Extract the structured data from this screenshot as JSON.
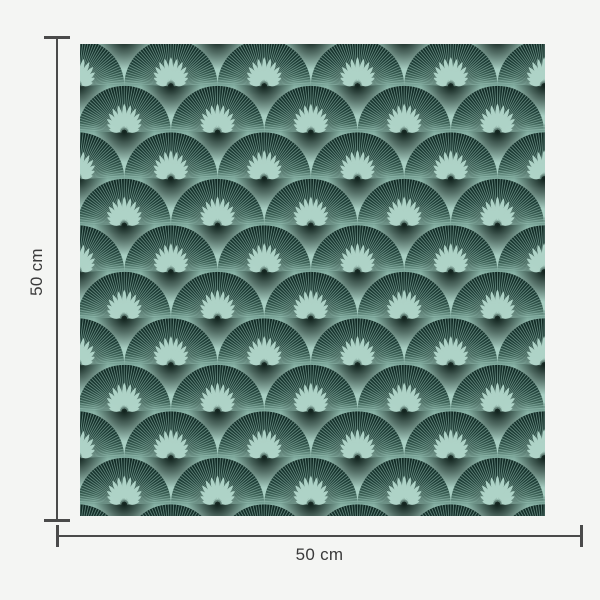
{
  "dimensions": {
    "height_label": "50 cm",
    "width_label": "50 cm"
  },
  "swatch": {
    "alt": "Art deco fan scallop pattern wallpaper swatch",
    "colors": {
      "page_background": "#f4f5f3",
      "mint": "#a7cec2",
      "mint_petal": "#b3d8cc",
      "teal_dark": "#0f2722",
      "teal_mid": "#1d3d36",
      "teal_deep_mid": "#3b6055",
      "halo": "#84afa2",
      "ray": "#9cc4b8",
      "core_shadow": "11,27,22",
      "dimension_line": "#4a4a4a",
      "label_text": "#3a3a3a"
    }
  }
}
